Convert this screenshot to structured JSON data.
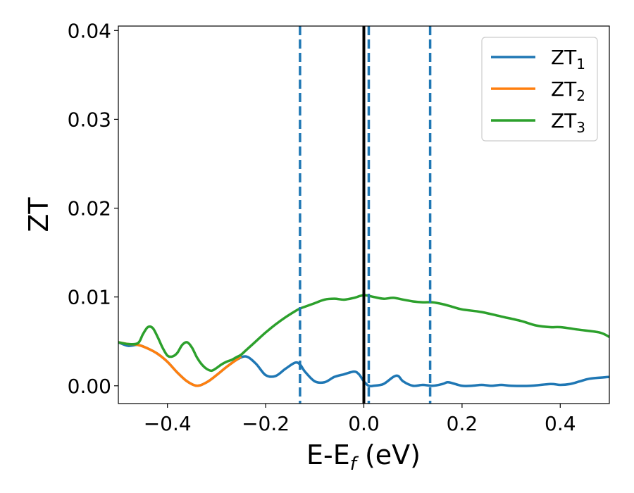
{
  "chart_data": {
    "type": "line",
    "xlabel": "E-E",
    "xlabel_sub": "f",
    "xlabel_unit": " (eV)",
    "ylabel": "ZT",
    "xlim": [
      -0.5,
      0.5
    ],
    "ylim": [
      -0.002,
      0.0405
    ],
    "xticks": [
      -0.4,
      -0.2,
      0.0,
      0.2,
      0.4
    ],
    "xtick_labels": [
      "−0.4",
      "−0.2",
      "0.0",
      "0.2",
      "0.4"
    ],
    "yticks": [
      0.0,
      0.01,
      0.02,
      0.03,
      0.04
    ],
    "ytick_labels": [
      "0.00",
      "0.01",
      "0.02",
      "0.03",
      "0.04"
    ],
    "grid": false,
    "legend_position": "top-right",
    "vlines": [
      {
        "x": -0.13,
        "style": "dashed",
        "color": "#1f77b4"
      },
      {
        "x": 0.0,
        "style": "solid",
        "color": "#000000"
      },
      {
        "x": 0.01,
        "style": "dashed",
        "color": "#1f77b4"
      },
      {
        "x": 0.135,
        "style": "dashed",
        "color": "#1f77b4"
      }
    ],
    "series": [
      {
        "name": "ZT",
        "sub": "1",
        "color": "#1f77b4",
        "x": [
          -0.5,
          -0.48,
          -0.46,
          -0.44,
          -0.42,
          -0.4,
          -0.38,
          -0.36,
          -0.34,
          -0.32,
          -0.3,
          -0.28,
          -0.26,
          -0.24,
          -0.22,
          -0.2,
          -0.18,
          -0.16,
          -0.14,
          -0.13,
          -0.12,
          -0.1,
          -0.08,
          -0.06,
          -0.04,
          -0.02,
          -0.01,
          0.0,
          0.01,
          0.02,
          0.04,
          0.06,
          0.07,
          0.08,
          0.1,
          0.12,
          0.14,
          0.16,
          0.17,
          0.18,
          0.2,
          0.22,
          0.24,
          0.26,
          0.28,
          0.3,
          0.34,
          0.38,
          0.4,
          0.42,
          0.44,
          0.46,
          0.5
        ],
        "y": [
          0.0049,
          0.0045,
          0.0046,
          0.0042,
          0.0036,
          0.0027,
          0.0015,
          0.0005,
          0.0,
          0.0004,
          0.0012,
          0.0021,
          0.0029,
          0.0033,
          0.0025,
          0.0012,
          0.0011,
          0.0019,
          0.0026,
          0.0024,
          0.0016,
          0.0005,
          0.0004,
          0.001,
          0.0013,
          0.0016,
          0.0013,
          0.0005,
          0.0,
          0.0,
          0.0002,
          0.001,
          0.0011,
          0.0005,
          0.0,
          0.0001,
          0.0,
          0.0002,
          0.0004,
          0.0003,
          0.0,
          0.0,
          0.0001,
          0.0,
          0.0001,
          0.0,
          0.0,
          0.0002,
          0.0001,
          0.0002,
          0.0005,
          0.0008,
          0.001
        ]
      },
      {
        "name": "ZT",
        "sub": "2",
        "color": "#ff7f0e",
        "x": [
          -0.5,
          -0.48,
          -0.46,
          -0.44,
          -0.42,
          -0.4,
          -0.38,
          -0.36,
          -0.34,
          -0.32,
          -0.3,
          -0.28,
          -0.26,
          -0.25
        ],
        "y": [
          0.0049,
          0.0047,
          0.0046,
          0.0042,
          0.0036,
          0.0027,
          0.0015,
          0.0005,
          0.0,
          0.0004,
          0.0012,
          0.0021,
          0.0029,
          0.0033
        ]
      },
      {
        "name": "ZT",
        "sub": "3",
        "color": "#2ca02c",
        "x": [
          -0.5,
          -0.48,
          -0.46,
          -0.45,
          -0.44,
          -0.43,
          -0.42,
          -0.41,
          -0.4,
          -0.39,
          -0.38,
          -0.37,
          -0.36,
          -0.35,
          -0.34,
          -0.33,
          -0.32,
          -0.31,
          -0.3,
          -0.29,
          -0.28,
          -0.27,
          -0.26,
          -0.25,
          -0.24,
          -0.22,
          -0.2,
          -0.18,
          -0.16,
          -0.14,
          -0.13,
          -0.12,
          -0.1,
          -0.08,
          -0.06,
          -0.04,
          -0.02,
          0.0,
          0.02,
          0.04,
          0.06,
          0.08,
          0.1,
          0.12,
          0.14,
          0.16,
          0.18,
          0.2,
          0.24,
          0.28,
          0.32,
          0.35,
          0.38,
          0.4,
          0.44,
          0.48,
          0.5
        ],
        "y": [
          0.0049,
          0.0047,
          0.0048,
          0.0058,
          0.0066,
          0.0065,
          0.0055,
          0.0043,
          0.0034,
          0.0033,
          0.0037,
          0.0046,
          0.0049,
          0.0043,
          0.0032,
          0.0024,
          0.0019,
          0.0017,
          0.002,
          0.0024,
          0.0027,
          0.0029,
          0.0032,
          0.0035,
          0.004,
          0.005,
          0.006,
          0.0069,
          0.0077,
          0.0084,
          0.0087,
          0.0089,
          0.0093,
          0.0097,
          0.0098,
          0.0097,
          0.0099,
          0.0102,
          0.01,
          0.0098,
          0.0099,
          0.0097,
          0.0095,
          0.0094,
          0.0094,
          0.0092,
          0.0089,
          0.0086,
          0.0083,
          0.0078,
          0.0073,
          0.0068,
          0.0066,
          0.0066,
          0.0063,
          0.006,
          0.0055
        ]
      }
    ]
  }
}
